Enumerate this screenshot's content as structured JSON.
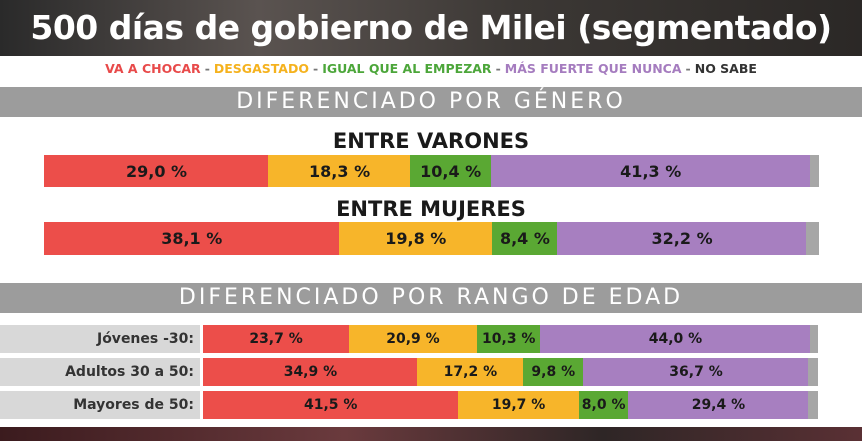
{
  "title": "500 días de gobierno de Milei (segmentado)",
  "legend": {
    "separator": "-",
    "items": [
      {
        "label": "VA A CHOCAR",
        "color": "#e84a4a"
      },
      {
        "label": "DESGASTADO",
        "color": "#f5b21e"
      },
      {
        "label": "IGUAL QUE AL EMPEZAR",
        "color": "#4ca63a"
      },
      {
        "label": "MÁS FUERTE QUE NUNCA",
        "color": "#a57cbf"
      },
      {
        "label": "NO SABE",
        "color": "#333333"
      }
    ]
  },
  "colors": {
    "va_a_chocar": "#ec4e4a",
    "desgastado": "#f7b52a",
    "igual": "#5aa833",
    "mas_fuerte": "#a77fc0",
    "no_sabe": "#a6a6a6"
  },
  "sections": {
    "gender": "DIFERENCIADO POR GÉNERO",
    "age": "DIFERENCIADO POR RANGO DE EDAD"
  },
  "chart_data": [
    {
      "type": "bar",
      "orientation": "horizontal-stacked",
      "title": "DIFERENCIADO POR GÉNERO",
      "series_names": [
        "VA A CHOCAR",
        "DESGASTADO",
        "IGUAL QUE AL EMPEZAR",
        "MÁS FUERTE QUE NUNCA",
        "NO SABE"
      ],
      "categories": [
        {
          "label": "ENTRE VARONES",
          "values": [
            29.0,
            18.3,
            10.4,
            41.3,
            1.0
          ],
          "labels": [
            "29,0 %",
            "18,3 %",
            "10,4 %",
            "41,3 %",
            ""
          ]
        },
        {
          "label": "ENTRE MUJERES",
          "values": [
            38.1,
            19.8,
            8.4,
            32.2,
            1.5
          ],
          "labels": [
            "38,1 %",
            "19,8 %",
            "8,4 %",
            "32,2 %",
            ""
          ]
        }
      ]
    },
    {
      "type": "bar",
      "orientation": "horizontal-stacked",
      "title": "DIFERENCIADO POR RANGO DE EDAD",
      "series_names": [
        "VA A CHOCAR",
        "DESGASTADO",
        "IGUAL QUE AL EMPEZAR",
        "MÁS FUERTE QUE NUNCA",
        "NO SABE"
      ],
      "categories": [
        {
          "label": "Jóvenes -30:",
          "values": [
            23.7,
            20.9,
            10.3,
            44.0,
            1.1
          ],
          "labels": [
            "23,7 %",
            "20,9 %",
            "10,3 %",
            "44,0 %",
            ""
          ]
        },
        {
          "label": "Adultos 30 a 50:",
          "values": [
            34.9,
            17.2,
            9.8,
            36.7,
            1.4
          ],
          "labels": [
            "34,9 %",
            "17,2 %",
            "9,8 %",
            "36,7 %",
            ""
          ]
        },
        {
          "label": "Mayores de 50:",
          "values": [
            41.5,
            19.7,
            8.0,
            29.4,
            1.4
          ],
          "labels": [
            "41,5 %",
            "19,7 %",
            "8,0 %",
            "29,4 %",
            ""
          ]
        }
      ]
    }
  ]
}
